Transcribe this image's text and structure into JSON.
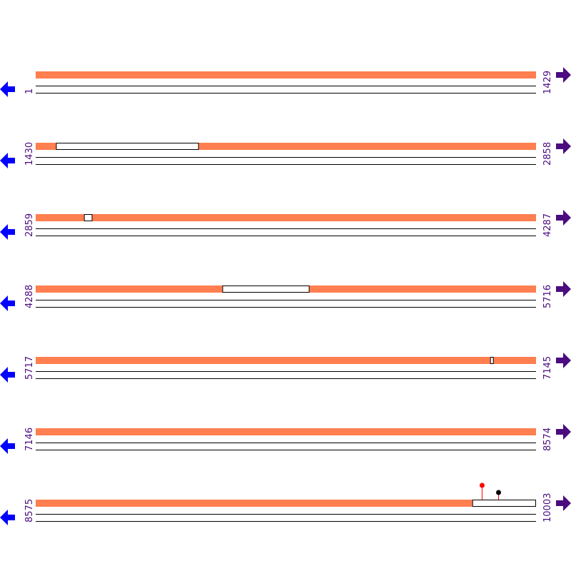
{
  "colors": {
    "covered": "#ff7f50",
    "gap": "#ffffff",
    "line": "#000000",
    "label": "#4b0c7f",
    "left_arrow": "#0000ff",
    "right_arrow": "#4b0c7f",
    "marker_red": "#ff0000",
    "marker_black": "#000000"
  },
  "icons": {
    "left": "arrow-left-icon",
    "right": "arrow-right-icon"
  },
  "rows": [
    {
      "start": "1",
      "end": "1429",
      "gaps": []
    },
    {
      "start": "1430",
      "end": "2858",
      "gaps": [
        [
          1489,
          1895
        ]
      ]
    },
    {
      "start": "2859",
      "end": "4287",
      "gaps": [
        [
          2998,
          3020
        ]
      ]
    },
    {
      "start": "4288",
      "end": "5716",
      "gaps": [
        [
          4822,
          5069
        ]
      ]
    },
    {
      "start": "5717",
      "end": "7145",
      "gaps": [
        [
          7016,
          7024
        ]
      ]
    },
    {
      "start": "7146",
      "end": "8574",
      "gaps": []
    },
    {
      "start": "8575",
      "end": "10003",
      "gaps": [
        [
          9823,
          10003
        ]
      ],
      "markers": [
        {
          "pos": 9850,
          "color": "red",
          "height": "tall"
        },
        {
          "pos": 9897,
          "color": "black",
          "height": "short"
        }
      ]
    }
  ]
}
